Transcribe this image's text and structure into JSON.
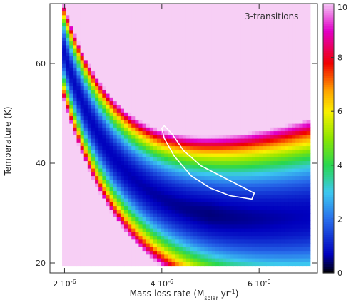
{
  "chart_data": {
    "type": "heatmap",
    "annotation": "3-transitions",
    "xlabel_main": "Mass-loss rate (M",
    "xlabel_sub": "solar",
    "xlabel_mid": " yr",
    "xlabel_sup": "-1",
    "xlabel_end": ")",
    "ylabel": "Temperature (K)",
    "xlim": [
      1.7,
      7.2
    ],
    "ylim": [
      18,
      72
    ],
    "data_extent": {
      "x": [
        1.95,
        7.05
      ],
      "y": [
        19.5,
        72
      ]
    },
    "x_ticks": [
      {
        "value": 2,
        "label": "2 10",
        "sup": "-6"
      },
      {
        "value": 4,
        "label": "4 10",
        "sup": "-6"
      },
      {
        "value": 6,
        "label": "6 10",
        "sup": "-6"
      }
    ],
    "y_ticks": [
      {
        "value": 20,
        "label": "20"
      },
      {
        "value": 40,
        "label": "40"
      },
      {
        "value": 60,
        "label": "60"
      }
    ],
    "colorbar": {
      "range": [
        0,
        10
      ],
      "ticks": [
        {
          "value": 0,
          "label": "0"
        },
        {
          "value": 2,
          "label": "2"
        },
        {
          "value": 4,
          "label": "4"
        },
        {
          "value": 6,
          "label": "6"
        },
        {
          "value": 8,
          "label": "8"
        },
        {
          "value": 10,
          "label": "10"
        }
      ]
    },
    "valley_curve": {
      "a": 2.6,
      "b": 320,
      "max_value": 10
    },
    "contour_level_description": "white contour around minimum",
    "contour": [
      [
        4.05,
        47.5
      ],
      [
        4.2,
        46.0
      ],
      [
        4.45,
        42.5
      ],
      [
        4.8,
        39.5
      ],
      [
        5.2,
        37.5
      ],
      [
        5.6,
        35.5
      ],
      [
        5.9,
        34.0
      ],
      [
        5.85,
        32.8
      ],
      [
        5.4,
        33.5
      ],
      [
        5.0,
        35.0
      ],
      [
        4.6,
        37.5
      ],
      [
        4.25,
        41.5
      ],
      [
        4.05,
        45.0
      ],
      [
        4.0,
        47.0
      ]
    ],
    "colors": {
      "background_fill": "#f7cff5",
      "contour": "#ffffff"
    }
  }
}
